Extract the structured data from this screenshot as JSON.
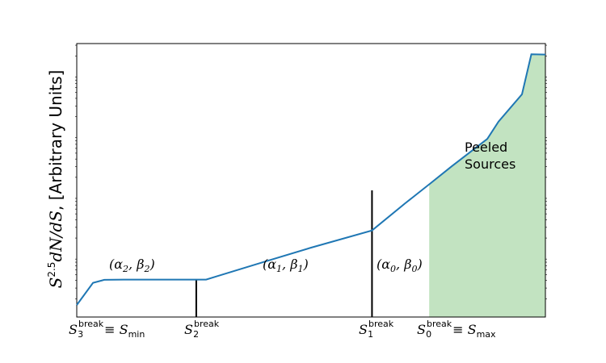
{
  "chart_data": {
    "type": "line",
    "title": "",
    "xscale": "log",
    "yscale": "log",
    "xlim": [
      0.0,
      1.0
    ],
    "ylim": [
      0.0,
      1.0
    ],
    "x": [
      0.0,
      0.0347,
      0.0586,
      0.1,
      0.145,
      0.276,
      0.3,
      0.4,
      0.5,
      0.63,
      0.7,
      0.752,
      0.8,
      0.876,
      0.9,
      0.95,
      0.97,
      1.0
    ],
    "y": [
      0.044,
      0.125,
      0.136,
      0.137,
      0.137,
      0.137,
      0.1496,
      0.2018,
      0.2538,
      0.3166,
      0.4148,
      0.4852,
      0.5509,
      0.6513,
      0.7148,
      0.8146,
      0.9608,
      0.96
    ],
    "ylabel": {
      "pre": "S",
      "sup": "2.5",
      "mid": "dN/dS",
      "post": ", [Arbitrary Units]"
    },
    "break_lines": [
      {
        "x": 0.255,
        "y": 0.137
      },
      {
        "x": 0.63,
        "y": 0.463
      }
    ],
    "shaded_region": {
      "x_start": 0.752,
      "x_end": 1.0,
      "label_line1": "Peeled",
      "label_line2": "Sources",
      "color": "#c2e3c1"
    },
    "segment_labels": [
      {
        "alpha": "2",
        "beta": "2"
      },
      {
        "alpha": "1",
        "beta": "1"
      },
      {
        "alpha": "0",
        "beta": "0"
      }
    ],
    "x_tick_labels": [
      {
        "base": "S",
        "sup": "break",
        "sub": "3",
        "suffix_base": "S",
        "suffix_sub": "min"
      },
      {
        "base": "S",
        "sup": "break",
        "sub": "2"
      },
      {
        "base": "S",
        "sup": "break",
        "sub": "1"
      },
      {
        "base": "S",
        "sup": "break",
        "sub": "0",
        "suffix_base": "S",
        "suffix_sub": "max"
      }
    ],
    "line_color": "#1f77b4",
    "grid": false
  }
}
